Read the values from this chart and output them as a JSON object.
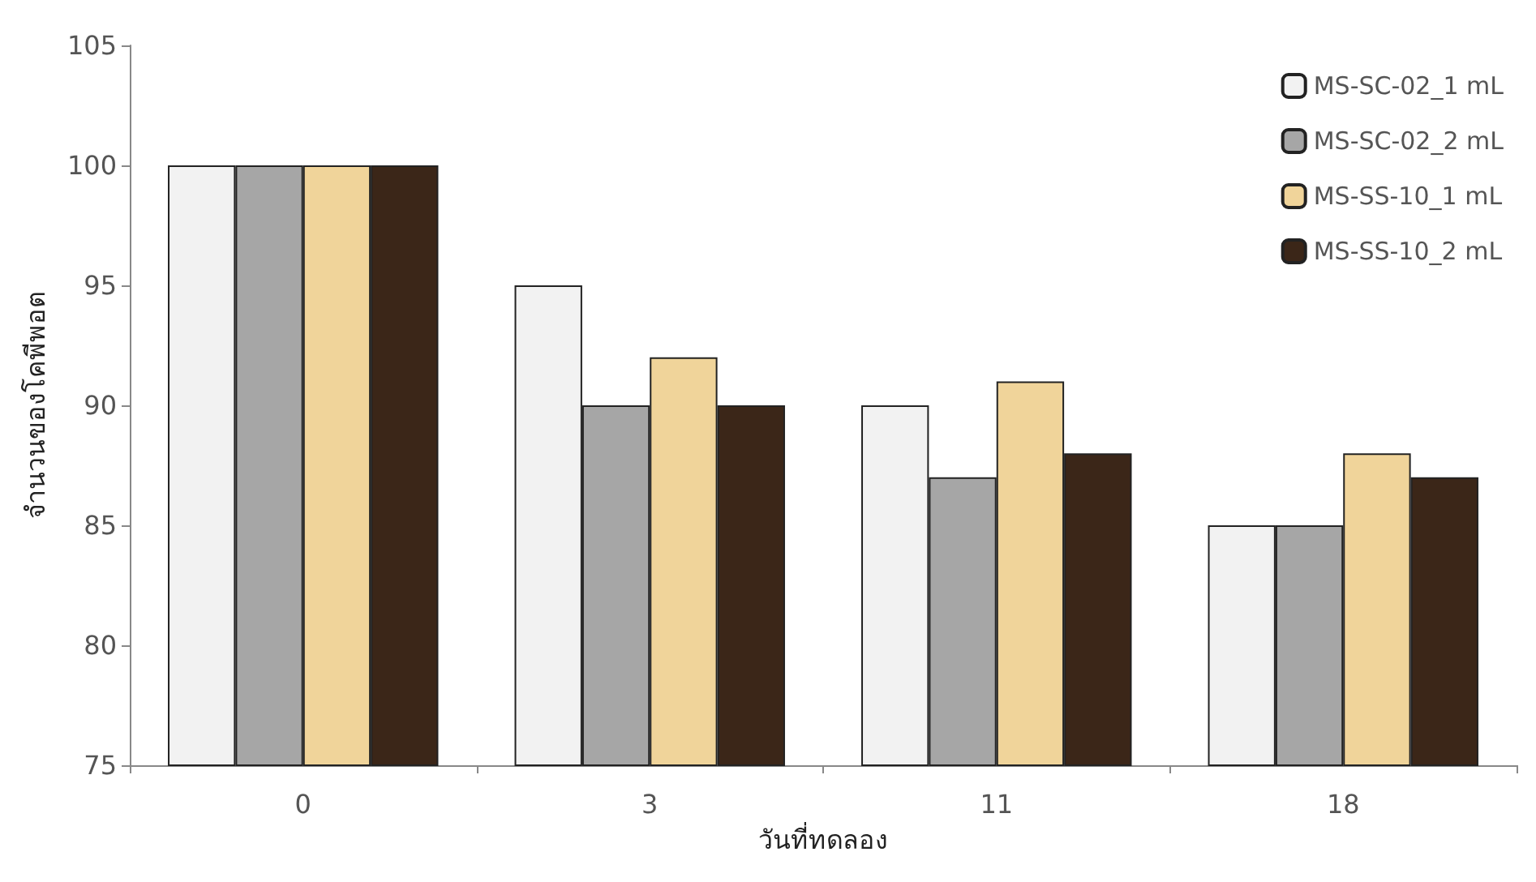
{
  "chart_data": {
    "type": "bar",
    "xlabel": "วันที่ทดลอง",
    "ylabel": "จำนวนของโคพีพอต",
    "categories": [
      "0",
      "3",
      "11",
      "18"
    ],
    "series": [
      {
        "name": "MS-SC-02_1 mL",
        "color": "#f2f2f2",
        "values": [
          100,
          95,
          90,
          85
        ]
      },
      {
        "name": "MS-SC-02_2 mL",
        "color": "#a6a6a6",
        "values": [
          100,
          90,
          87,
          85
        ]
      },
      {
        "name": "MS-SS-10_1 mL",
        "color": "#f0d49a",
        "values": [
          100,
          92,
          91,
          88
        ]
      },
      {
        "name": "MS-SS-10_2 mL",
        "color": "#3b2618",
        "values": [
          100,
          90,
          88,
          87
        ]
      }
    ],
    "ylim": [
      75,
      105
    ],
    "yticks": [
      75,
      80,
      85,
      90,
      95,
      100,
      105
    ],
    "grid": false,
    "legend": "top right"
  }
}
